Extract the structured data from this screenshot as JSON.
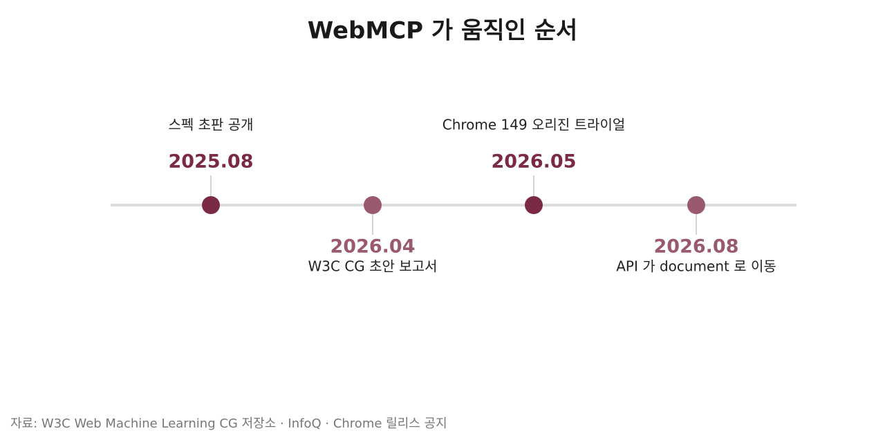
{
  "header": {
    "title": "WebMCP 가 움직인 순서"
  },
  "events": [
    {
      "date": "2025.08",
      "label": "스펙 초판 공개"
    },
    {
      "date": "2026.04",
      "label": "W3C CG 초안 보고서"
    },
    {
      "date": "2026.05",
      "label": "Chrome 149 오리진 트라이얼"
    },
    {
      "date": "2026.08",
      "label": "API 가 document 로 이동"
    }
  ],
  "footer": {
    "source": "자료: W3C Web Machine Learning CG 저장소 · InfoQ · Chrome 릴리스 공지"
  }
}
